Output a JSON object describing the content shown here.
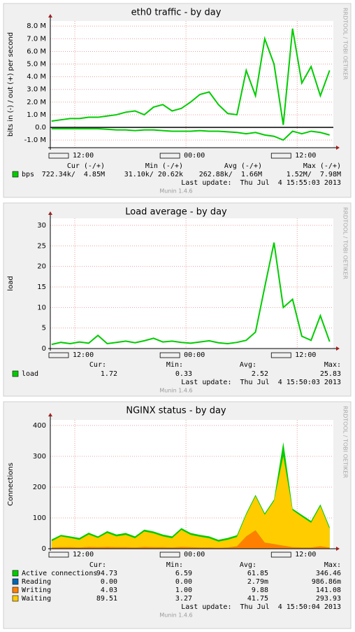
{
  "chart_data": [
    {
      "type": "line",
      "title": "eth0 traffic - by day",
      "ylabel": "bits in (-) / out (+) per second",
      "side_text": "RRDTOOL / TOBI OETIKER",
      "version": "Munin 1.4.6",
      "last_update": "Last update:  Thu Jul  4 15:55:03 2013",
      "zero_rule": true,
      "grid": true,
      "x": [
        -2.5,
        -1.5,
        -0.5,
        0.5,
        1.5,
        2.5,
        3.5,
        4.5,
        5.5,
        6.5,
        7.5,
        8.5,
        9.5,
        10.5,
        11.5,
        12.5,
        13.5,
        14.5,
        15.5,
        16.5,
        17.5,
        18.5,
        19.5,
        20.5,
        21.5,
        22.5,
        23.5,
        24.5,
        25.5,
        26.5,
        27.5
      ],
      "xlim": [
        -2.64,
        27.9
      ],
      "xticks": [
        {
          "value": 0,
          "label": "12:00"
        },
        {
          "value": 12,
          "label": "00:00"
        },
        {
          "value": 24,
          "label": "12:00"
        }
      ],
      "ylim": [
        -1.6,
        8.4
      ],
      "yticks": [
        {
          "value": -1,
          "label": "-1.0 M"
        },
        {
          "value": 0,
          "label": "0.0"
        },
        {
          "value": 1,
          "label": "1.0 M"
        },
        {
          "value": 2,
          "label": "2.0 M"
        },
        {
          "value": 3,
          "label": "3.0 M"
        },
        {
          "value": 4,
          "label": "4.0 M"
        },
        {
          "value": 5,
          "label": "5.0 M"
        },
        {
          "value": 6,
          "label": "6.0 M"
        },
        {
          "value": 7,
          "label": "7.0 M"
        },
        {
          "value": 8,
          "label": "8.0 M"
        }
      ],
      "columns": [
        "Cur (-/+)",
        "Min (-/+)",
        "Avg (-/+)",
        "Max (-/+)"
      ],
      "series": [
        {
          "name": "bps",
          "color": "#00cc00",
          "stats": [
            "722.34k/  4.85M",
            "31.10k/ 20.62k",
            "262.88k/  1.66M",
            "1.52M/  7.98M"
          ],
          "values": [
            0.5,
            0.6,
            0.7,
            0.7,
            0.8,
            0.8,
            0.9,
            1.0,
            1.2,
            1.3,
            1.0,
            1.6,
            1.8,
            1.3,
            1.5,
            2.0,
            2.6,
            2.8,
            1.8,
            1.1,
            1.0,
            4.5,
            2.5,
            7.0,
            5.0,
            0.2,
            7.8,
            3.5,
            4.8,
            2.5,
            4.5
          ]
        },
        {
          "color": "#00cc00",
          "values": [
            -0.1,
            -0.1,
            -0.1,
            -0.1,
            -0.1,
            -0.1,
            -0.15,
            -0.2,
            -0.2,
            -0.25,
            -0.2,
            -0.2,
            -0.25,
            -0.3,
            -0.3,
            -0.3,
            -0.25,
            -0.3,
            -0.3,
            -0.35,
            -0.4,
            -0.5,
            -0.4,
            -0.6,
            -0.7,
            -1.0,
            -0.3,
            -0.5,
            -0.3,
            -0.4,
            -0.6
          ]
        }
      ]
    },
    {
      "type": "line",
      "title": "Load average - by day",
      "ylabel": "load",
      "side_text": "RRDTOOL / TOBI OETIKER",
      "version": "Munin 1.4.6",
      "last_update": "Last update:  Thu Jul  4 15:50:03 2013",
      "grid": true,
      "x": [
        -2.5,
        -1.5,
        -0.5,
        0.5,
        1.5,
        2.5,
        3.5,
        4.5,
        5.5,
        6.5,
        7.5,
        8.5,
        9.5,
        10.5,
        11.5,
        12.5,
        13.5,
        14.5,
        15.5,
        16.5,
        17.5,
        18.5,
        19.5,
        20.5,
        21.5,
        22.5,
        23.5,
        24.5,
        25.5,
        26.5,
        27.5
      ],
      "xlim": [
        -2.64,
        27.9
      ],
      "xticks": [
        {
          "value": 0,
          "label": "12:00"
        },
        {
          "value": 12,
          "label": "00:00"
        },
        {
          "value": 24,
          "label": "12:00"
        }
      ],
      "ylim": [
        0,
        31.7
      ],
      "yticks": [
        0,
        5,
        10,
        15,
        20,
        25,
        30
      ],
      "columns": [
        "Cur:",
        "Min:",
        "Avg:",
        "Max:"
      ],
      "series": [
        {
          "name": "load",
          "color": "#00cc00",
          "stats": [
            "1.72",
            "0.33",
            "2.52",
            "25.83"
          ],
          "values": [
            1,
            1.5,
            1.2,
            1.6,
            1.3,
            3.2,
            1.2,
            1.5,
            1.8,
            1.4,
            1.9,
            2.5,
            1.6,
            1.8,
            1.5,
            1.3,
            1.6,
            1.9,
            1.4,
            1.2,
            1.5,
            2.0,
            4.0,
            15,
            25.8,
            10,
            12,
            3,
            2,
            8,
            1.7
          ]
        }
      ]
    },
    {
      "type": "area",
      "title": "NGINX status - by day",
      "ylabel": "Connections",
      "side_text": "RRDTOOL / TOBI OETIKER",
      "version": "Munin 1.4.6",
      "last_update": "Last update:  Thu Jul  4 15:50:04 2013",
      "grid": true,
      "x": [
        -2.5,
        -1.5,
        -0.5,
        0.5,
        1.5,
        2.5,
        3.5,
        4.5,
        5.5,
        6.5,
        7.5,
        8.5,
        9.5,
        10.5,
        11.5,
        12.5,
        13.5,
        14.5,
        15.5,
        16.5,
        17.5,
        18.5,
        19.5,
        20.5,
        21.5,
        22.5,
        23.5,
        24.5,
        25.5,
        26.5,
        27.5
      ],
      "xlim": [
        -2.64,
        27.9
      ],
      "xticks": [
        {
          "value": 0,
          "label": "12:00"
        },
        {
          "value": 12,
          "label": "00:00"
        },
        {
          "value": 24,
          "label": "12:00"
        }
      ],
      "ylim": [
        0,
        418
      ],
      "yticks": [
        0,
        100,
        200,
        300,
        400
      ],
      "columns": [
        "Cur:",
        "Min:",
        "Avg:",
        "Max:"
      ],
      "series": [
        {
          "name": "Active connections",
          "color": "#00cc00",
          "stacked": false,
          "stats": [
            "94.73",
            "6.59",
            "61.85",
            "346.46"
          ],
          "values": [
            30,
            45,
            40,
            35,
            52,
            40,
            57,
            46,
            51,
            40,
            62,
            56,
            46,
            40,
            67,
            51,
            45,
            40,
            29,
            35,
            44,
            115,
            175,
            115,
            160,
            346,
            130,
            110,
            90,
            144,
            70
          ]
        },
        {
          "name": "Reading",
          "color": "#0066b3",
          "stacked": true,
          "stats": [
            "0.00",
            "0.00",
            "2.79m",
            "986.86m"
          ],
          "values": [
            0,
            0,
            0,
            0,
            0,
            0,
            0,
            0,
            0,
            0,
            0,
            0,
            0,
            0,
            0,
            0,
            0,
            0,
            0,
            0,
            0,
            0,
            0,
            0,
            0,
            0,
            0,
            0,
            0,
            0,
            0
          ]
        },
        {
          "name": "Writing",
          "color": "#ff8000",
          "stacked": true,
          "stats": [
            "4.03",
            "1.00",
            "9.88",
            "141.08"
          ],
          "values": [
            4,
            5,
            5,
            4,
            6,
            5,
            6,
            5,
            5,
            4,
            6,
            5,
            5,
            4,
            6,
            5,
            4,
            4,
            3,
            4,
            8,
            40,
            60,
            20,
            15,
            10,
            5,
            4,
            4,
            8,
            4
          ]
        },
        {
          "name": "Waiting",
          "color": "#ffcc00",
          "stacked": true,
          "stats": [
            "89.51",
            "3.27",
            "41.75",
            "293.93"
          ],
          "values": [
            20,
            35,
            30,
            25,
            40,
            30,
            45,
            35,
            40,
            30,
            50,
            45,
            35,
            30,
            55,
            40,
            35,
            30,
            20,
            25,
            30,
            70,
            110,
            90,
            140,
            290,
            120,
            100,
            80,
            130,
            60
          ]
        }
      ]
    }
  ]
}
